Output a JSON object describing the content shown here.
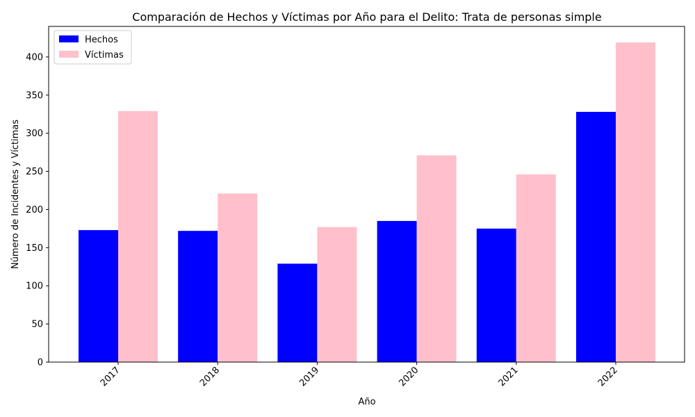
{
  "chart_data": {
    "type": "bar",
    "title": "Comparación de Hechos y Víctimas por Año para el Delito: Trata de personas simple",
    "xlabel": "Año",
    "ylabel": "Número de Incidentes y Víctimas",
    "categories": [
      "2017",
      "2018",
      "2019",
      "2020",
      "2021",
      "2022"
    ],
    "series": [
      {
        "name": "Hechos",
        "color": "#0000ff",
        "values": [
          173,
          172,
          129,
          185,
          175,
          328
        ]
      },
      {
        "name": "Víctimas",
        "color": "#ffc0cb",
        "values": [
          329,
          221,
          177,
          271,
          246,
          419
        ]
      }
    ],
    "ylim": [
      0,
      440
    ],
    "yticks": [
      0,
      50,
      100,
      150,
      200,
      250,
      300,
      350,
      400
    ],
    "legend_position": "top-left",
    "grid": false
  }
}
